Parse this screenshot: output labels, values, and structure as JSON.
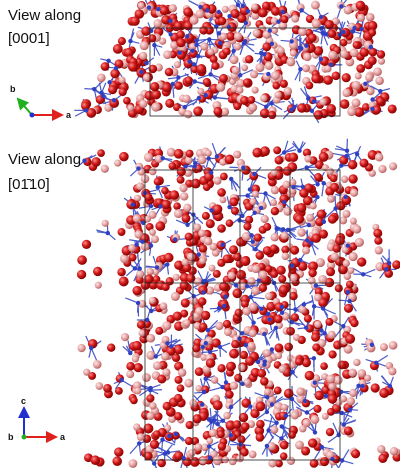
{
  "panels": [
    {
      "label": "View along",
      "direction": "[0001]",
      "axes": [
        "b",
        "a"
      ]
    },
    {
      "label": "View along",
      "direction": "[01̄10]",
      "axes": [
        "c",
        "b",
        "a"
      ]
    }
  ]
}
